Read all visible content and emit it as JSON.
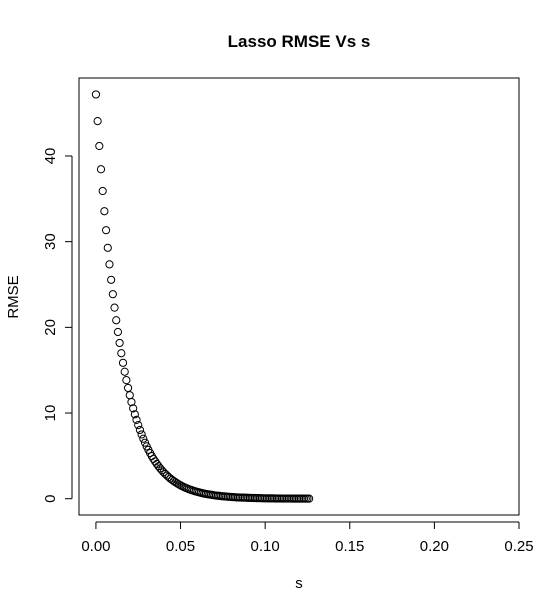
{
  "chart_data": {
    "type": "scatter",
    "title": "Lasso RMSE Vs s",
    "xlabel": "s",
    "ylabel": "RMSE",
    "xlim": [
      -0.01,
      0.25
    ],
    "ylim": [
      -1.9,
      49.1
    ],
    "x_ticks": [
      0.0,
      0.05,
      0.1,
      0.15,
      0.2,
      0.25
    ],
    "x_tick_labels": [
      "0.00",
      "0.05",
      "0.10",
      "0.15",
      "0.20",
      "0.25"
    ],
    "y_ticks": [
      0,
      10,
      20,
      30,
      40
    ],
    "y_tick_labels": [
      "0",
      "10",
      "20",
      "30",
      "40"
    ],
    "grid": false,
    "legend": "none",
    "marker": "open-circle",
    "color": "#000000",
    "series": [
      {
        "x": [
          0.0,
          0.001,
          0.002,
          0.003,
          0.004,
          0.005,
          0.006,
          0.007,
          0.008,
          0.009,
          0.01,
          0.011,
          0.012,
          0.013,
          0.014,
          0.015,
          0.016,
          0.017,
          0.018,
          0.019,
          0.02,
          0.021,
          0.022,
          0.023,
          0.024,
          0.025,
          0.026,
          0.027,
          0.028,
          0.029,
          0.03,
          0.031,
          0.032,
          0.033,
          0.034,
          0.035,
          0.036,
          0.037,
          0.038,
          0.039,
          0.04,
          0.041,
          0.042,
          0.043,
          0.044,
          0.045,
          0.046,
          0.047,
          0.048,
          0.049,
          0.05,
          0.051,
          0.052,
          0.053,
          0.054,
          0.055,
          0.056,
          0.057,
          0.058,
          0.059,
          0.06,
          0.061,
          0.062,
          0.063,
          0.064,
          0.065,
          0.066,
          0.067,
          0.068,
          0.069,
          0.07,
          0.071,
          0.072,
          0.073,
          0.074,
          0.075,
          0.076,
          0.077,
          0.078,
          0.079,
          0.08,
          0.081,
          0.082,
          0.083,
          0.084,
          0.085,
          0.086,
          0.087,
          0.088,
          0.089,
          0.09,
          0.091,
          0.092,
          0.093,
          0.094,
          0.095,
          0.096,
          0.097,
          0.098,
          0.099,
          0.1,
          0.101,
          0.102,
          0.103,
          0.104,
          0.105,
          0.106,
          0.107,
          0.108,
          0.109,
          0.11,
          0.111,
          0.112,
          0.113,
          0.114,
          0.115,
          0.116,
          0.117,
          0.118,
          0.119,
          0.12,
          0.121,
          0.122,
          0.123,
          0.124,
          0.125,
          0.126
        ],
        "y": [
          47.18,
          44.07,
          41.16,
          38.45,
          35.91,
          33.55,
          31.34,
          29.28,
          27.35,
          25.55,
          23.87,
          22.3,
          20.83,
          19.46,
          18.18,
          16.98,
          15.86,
          14.82,
          13.84,
          12.93,
          12.08,
          11.28,
          10.54,
          9.85,
          9.2,
          8.59,
          8.03,
          7.5,
          7.0,
          6.54,
          6.11,
          5.71,
          5.33,
          4.98,
          4.65,
          4.35,
          4.06,
          3.79,
          3.54,
          3.31,
          3.09,
          2.89,
          2.7,
          2.52,
          2.35,
          2.2,
          2.05,
          1.92,
          1.79,
          1.67,
          1.56,
          1.46,
          1.36,
          1.27,
          1.19,
          1.11,
          1.04,
          0.97,
          0.91,
          0.85,
          0.79,
          0.74,
          0.69,
          0.64,
          0.6,
          0.56,
          0.52,
          0.49,
          0.46,
          0.43,
          0.4,
          0.37,
          0.35,
          0.33,
          0.3,
          0.28,
          0.27,
          0.25,
          0.23,
          0.22,
          0.2,
          0.19,
          0.18,
          0.16,
          0.15,
          0.14,
          0.13,
          0.13,
          0.12,
          0.11,
          0.1,
          0.1,
          0.09,
          0.08,
          0.08,
          0.07,
          0.07,
          0.06,
          0.06,
          0.05,
          0.05,
          0.05,
          0.04,
          0.04,
          0.04,
          0.04,
          0.03,
          0.03,
          0.03,
          0.03,
          0.02,
          0.02,
          0.02,
          0.02,
          0.02,
          0.02,
          0.01,
          0.01,
          0.01,
          0.01,
          0.01,
          0.01,
          0.01,
          0.01,
          0.01,
          0.01,
          0.01
        ]
      }
    ]
  }
}
